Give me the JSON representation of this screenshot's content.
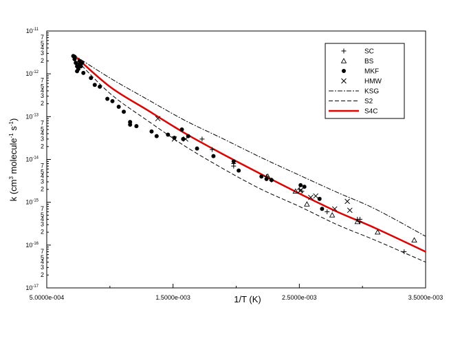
{
  "chart_data": {
    "type": "scatter",
    "title": "",
    "xlabel": "1/T (K)",
    "ylabel": {
      "base": "k (cm",
      "sup1": "3",
      "mid": " molecule",
      "sup2": "-1",
      "sup_sp": " s",
      "sup3": "-1",
      "end": ")"
    },
    "xlim": [
      0.0005,
      0.0035
    ],
    "ylim_log10": [
      -17,
      -11
    ],
    "x_ticks": [
      {
        "value": 0.0005,
        "label": "5.0000e-004"
      },
      {
        "value": 0.0015,
        "label": "1.5000e-003"
      },
      {
        "value": 0.0025,
        "label": "2.5000e-003"
      },
      {
        "value": 0.0035,
        "label": "3.5000e-003"
      }
    ],
    "y_ticks": [
      {
        "exp": -11,
        "label": "10",
        "sup": "-11"
      },
      {
        "exp": -12,
        "label": "10",
        "sup": "-12"
      },
      {
        "exp": -13,
        "label": "10",
        "sup": "-13"
      },
      {
        "exp": -14,
        "label": "10",
        "sup": "-14"
      },
      {
        "exp": -15,
        "label": "10",
        "sup": "-15"
      },
      {
        "exp": -16,
        "label": "10",
        "sup": "-16"
      },
      {
        "exp": -17,
        "label": "10",
        "sup": "-17"
      }
    ],
    "minor_tick_labels": [
      "2",
      "3",
      "4",
      "5",
      "7"
    ],
    "legend": [
      {
        "label": "SC",
        "kind": "plus"
      },
      {
        "label": "BS",
        "kind": "triangle"
      },
      {
        "label": "MKF",
        "kind": "circle"
      },
      {
        "label": "HMW",
        "kind": "cross"
      },
      {
        "label": "KSG",
        "kind": "dashdot"
      },
      {
        "label": "S2",
        "kind": "dashed"
      },
      {
        "label": "S4C",
        "kind": "red-solid"
      }
    ],
    "series": [
      {
        "name": "SC",
        "marker": "plus",
        "points": [
          [
            0.00173,
            3e-14
          ],
          [
            0.00181,
            1.7e-14
          ],
          [
            0.00198,
            8e-15
          ],
          [
            0.00198,
            7e-15
          ],
          [
            0.00224,
            4e-15
          ],
          [
            0.00228,
            3.3e-15
          ],
          [
            0.0025,
            2e-15
          ],
          [
            0.00252,
            1.8e-15
          ],
          [
            0.00272,
            6e-16
          ],
          [
            0.00296,
            4e-16
          ],
          [
            0.00298,
            3.5e-16
          ],
          [
            0.00298,
            4e-16
          ],
          [
            0.00333,
            7e-17
          ]
        ]
      },
      {
        "name": "BS",
        "marker": "triangle",
        "points": [
          [
            0.00225,
            4e-15
          ],
          [
            0.00247,
            1.8e-15
          ],
          [
            0.00256,
            9e-16
          ],
          [
            0.00276,
            5e-16
          ],
          [
            0.00296,
            3.5e-16
          ],
          [
            0.00312,
            2e-16
          ],
          [
            0.00341,
            1.3e-16
          ]
        ]
      },
      {
        "name": "MKF",
        "marker": "circle",
        "points": [
          [
            0.00071,
            2.6e-12
          ],
          [
            0.00072,
            2.5e-12
          ],
          [
            0.00072,
            2.2e-12
          ],
          [
            0.00073,
            1.8e-12
          ],
          [
            0.00074,
            1.5e-12
          ],
          [
            0.00074,
            1.15e-12
          ],
          [
            0.00075,
            1.3e-12
          ],
          [
            0.00076,
            2e-12
          ],
          [
            0.00076,
            1.7e-12
          ],
          [
            0.00077,
            1.5e-12
          ],
          [
            0.00078,
            1.8e-12
          ],
          [
            0.00079,
            1.05e-12
          ],
          [
            0.00085,
            8e-13
          ],
          [
            0.00088,
            5.5e-13
          ],
          [
            0.00092,
            5e-13
          ],
          [
            0.00098,
            2.6e-13
          ],
          [
            0.00102,
            2.3e-13
          ],
          [
            0.00107,
            1.7e-13
          ],
          [
            0.00111,
            1.3e-13
          ],
          [
            0.00116,
            7.5e-14
          ],
          [
            0.00116,
            6.5e-14
          ],
          [
            0.00121,
            6e-14
          ],
          [
            0.00133,
            4.5e-14
          ],
          [
            0.00137,
            3.5e-14
          ],
          [
            0.00146,
            3.8e-14
          ],
          [
            0.00151,
            3.2e-14
          ],
          [
            0.00157,
            5e-14
          ],
          [
            0.00158,
            3e-14
          ],
          [
            0.00162,
            3.5e-14
          ],
          [
            0.00169,
            1.8e-14
          ],
          [
            0.00182,
            1.2e-14
          ],
          [
            0.00198,
            9e-15
          ],
          [
            0.00202,
            5.5e-15
          ],
          [
            0.0022,
            4e-15
          ],
          [
            0.00224,
            3.5e-15
          ],
          [
            0.00228,
            3.3e-15
          ],
          [
            0.00251,
            2.5e-15
          ],
          [
            0.00254,
            2.3e-15
          ],
          [
            0.00266,
            1.2e-15
          ],
          [
            0.00268,
            7e-16
          ]
        ]
      },
      {
        "name": "HMW",
        "marker": "cross",
        "points": [
          [
            0.00138,
            9e-14
          ],
          [
            0.00151,
            3e-14
          ],
          [
            0.0016,
            3e-14
          ],
          [
            0.00251,
            1.9e-15
          ],
          [
            0.00259,
            1.3e-15
          ],
          [
            0.00263,
            1.4e-15
          ],
          [
            0.00278,
            7e-16
          ],
          [
            0.00288,
            1.05e-15
          ],
          [
            0.0029,
            6.5e-16
          ]
        ]
      }
    ],
    "curves": [
      {
        "name": "KSG",
        "style": "dashdot",
        "x": [
          0.00071,
          0.001,
          0.0013,
          0.0016,
          0.0019,
          0.0022,
          0.0025,
          0.0028,
          0.0031,
          0.0035
        ],
        "y": [
          2.8e-12,
          8e-13,
          2.5e-13,
          8e-14,
          3e-14,
          1.1e-14,
          4.3e-15,
          1.7e-15,
          7e-16,
          1.6e-16
        ]
      },
      {
        "name": "S2",
        "style": "dashed",
        "x": [
          0.00071,
          0.001,
          0.0013,
          0.0016,
          0.0019,
          0.0022,
          0.0025,
          0.0028,
          0.0031,
          0.0035
        ],
        "y": [
          2.5e-12,
          3.5e-13,
          8e-14,
          2e-14,
          6e-15,
          2e-15,
          8e-16,
          3e-16,
          1.3e-16,
          4e-17
        ]
      },
      {
        "name": "S4C",
        "style": "red-solid",
        "x": [
          0.00071,
          0.001,
          0.0013,
          0.0016,
          0.0019,
          0.0022,
          0.0025,
          0.0028,
          0.0031,
          0.0035
        ],
        "y": [
          2.8e-12,
          5e-13,
          1.4e-13,
          4e-14,
          1.3e-14,
          4.5e-15,
          1.6e-15,
          6e-16,
          2.5e-16,
          7e-17
        ]
      }
    ]
  }
}
